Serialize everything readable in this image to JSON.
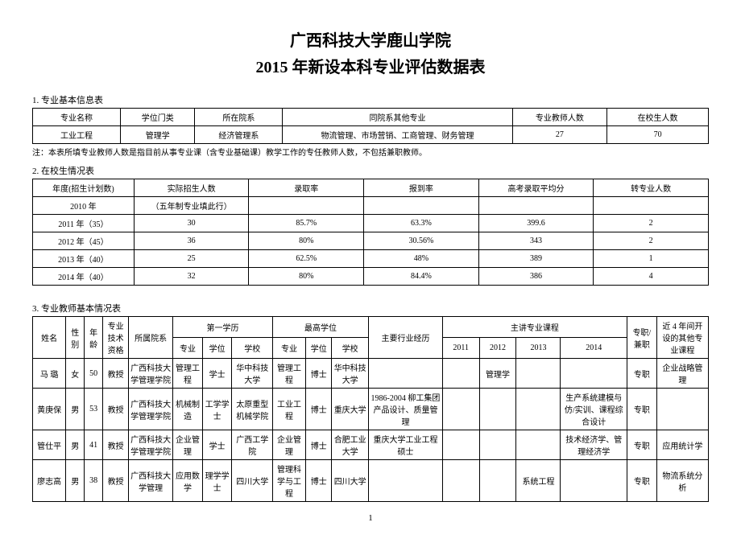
{
  "header": {
    "university": "广西科技大学鹿山学院",
    "title": "2015 年新设本科专业评估数据表"
  },
  "section1": {
    "label": "1. 专业基本信息表",
    "columns": [
      "专业名称",
      "学位门类",
      "所在院系",
      "同院系其他专业",
      "专业教师人数",
      "在校生人数"
    ],
    "row": [
      "工业工程",
      "管理学",
      "经济管理系",
      "物流管理、市场营销、工商管理、财务管理",
      "27",
      "70"
    ],
    "note": "注：本表所填专业教师人数是指目前从事专业课（含专业基础课）教学工作的专任教师人数，不包括兼职教师。"
  },
  "section2": {
    "label": "2. 在校生情况表",
    "columns": [
      "年度(招生计划数)",
      "实际招生人数",
      "录取率",
      "报到率",
      "高考录取平均分",
      "转专业人数"
    ],
    "rows": [
      [
        "2010 年",
        "（五年制专业填此行）",
        "",
        "",
        "",
        ""
      ],
      [
        "2011 年（35）",
        "30",
        "85.7%",
        "63.3%",
        "399.6",
        "2"
      ],
      [
        "2012 年（45）",
        "36",
        "80%",
        "30.56%",
        "343",
        "2"
      ],
      [
        "2013 年（40）",
        "25",
        "62.5%",
        "48%",
        "389",
        "1"
      ],
      [
        "2014 年（40）",
        "32",
        "80%",
        "84.4%",
        "386",
        "4"
      ]
    ]
  },
  "section3": {
    "label": "3. 专业教师基本情况表",
    "header": {
      "name": "姓名",
      "gender": "性别",
      "age": "年龄",
      "qual": "专业技术资格",
      "dept": "所属院系",
      "first_edu": "第一学历",
      "first_major": "专业",
      "first_degree": "学位",
      "first_school": "学校",
      "highest": "最高学位",
      "h_major": "专业",
      "h_degree": "学位",
      "h_school": "学校",
      "exp": "主要行业经历",
      "courses": "主讲专业课程",
      "y2011": "2011",
      "y2012": "2012",
      "y2013": "2013",
      "y2014": "2014",
      "ftpt": "专职/兼职",
      "other": "近 4 年间开设的其他专业课程"
    },
    "rows": [
      {
        "name": "马 璐",
        "gender": "女",
        "age": "50",
        "qual": "教授",
        "dept": "广西科技大学管理学院",
        "fm": "管理工程",
        "fd": "学士",
        "fs": "华中科技大学",
        "hm": "管理工程",
        "hd": "博士",
        "hs": "华中科技大学",
        "exp": "",
        "c11": "",
        "c12": "管理学",
        "c13": "",
        "c14": "",
        "ftpt": "专职",
        "other": "企业战略管理"
      },
      {
        "name": "黄庚保",
        "gender": "男",
        "age": "53",
        "qual": "教授",
        "dept": "广西科技大学管理学院",
        "fm": "机械制造",
        "fd": "工学学士",
        "fs": "太原重型机械学院",
        "hm": "工业工程",
        "hd": "博士",
        "hs": "重庆大学",
        "exp": "1986-2004 柳工集团产品设计、质量管理",
        "c11": "",
        "c12": "",
        "c13": "",
        "c14": "生产系统建模与仿/实训、课程综合设计",
        "ftpt": "专职",
        "other": ""
      },
      {
        "name": "管仕平",
        "gender": "男",
        "age": "41",
        "qual": "教授",
        "dept": "广西科技大学管理学院",
        "fm": "企业管理",
        "fd": "学士",
        "fs": "广西工学院",
        "hm": "企业管理",
        "hd": "博士",
        "hs": "合肥工业大学",
        "exp": "重庆大学工业工程硕士",
        "c11": "",
        "c12": "",
        "c13": "",
        "c14": "技术经济学、管理经济学",
        "ftpt": "专职",
        "other": "应用统计学"
      },
      {
        "name": "廖志高",
        "gender": "男",
        "age": "38",
        "qual": "教授",
        "dept": "广西科技大学管理",
        "fm": "应用数学",
        "fd": "理学学士",
        "fs": "四川大学",
        "hm": "管理科学与工程",
        "hd": "博士",
        "hs": "四川大学",
        "exp": "",
        "c11": "",
        "c12": "",
        "c13": "系统工程",
        "c14": "",
        "ftpt": "专职",
        "other": "物流系统分析"
      }
    ]
  },
  "page_number": "1",
  "style": {
    "bg": "#ffffff",
    "border": "#000000",
    "text": "#000000",
    "title_fontsize": 20,
    "body_fontsize": 11,
    "cell_fontsize": 10
  }
}
